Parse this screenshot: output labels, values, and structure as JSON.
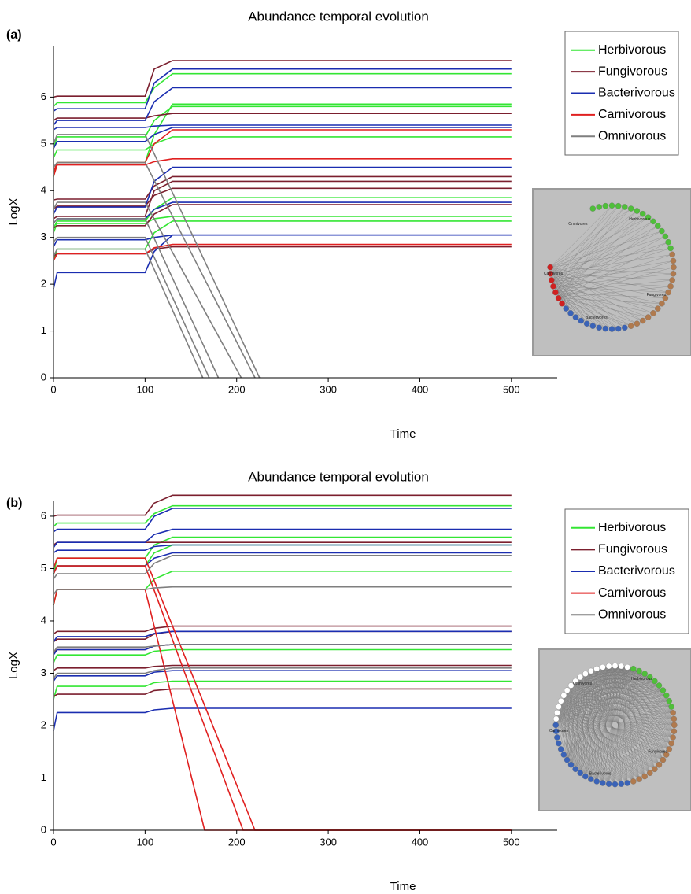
{
  "chart_data": [
    {
      "type": "line",
      "panel": "(a)",
      "title": "Abundance  temporal evolution",
      "x_label": "Time",
      "y_label": "LogX",
      "xlim": [
        0,
        550
      ],
      "ylim": [
        0,
        7.1
      ],
      "xticks": [
        0,
        100,
        200,
        300,
        400,
        500
      ],
      "yticks": [
        0,
        1,
        2,
        3,
        4,
        5,
        6
      ],
      "x": [
        0,
        4,
        100,
        110,
        130,
        500
      ],
      "series": [
        {
          "name": "Herbivorous",
          "color": "#33e633",
          "lines": [
            {
              "values": [
                5.8,
                5.88,
                5.88,
                6.2,
                6.5,
                6.5
              ]
            },
            {
              "values": [
                4.9,
                5.15,
                5.15,
                5.5,
                5.8,
                5.8
              ]
            },
            {
              "values": [
                4.7,
                4.87,
                4.87,
                5.0,
                5.15,
                5.15
              ]
            },
            {
              "values": [
                4.3,
                4.6,
                4.6,
                5.2,
                5.85,
                5.85
              ]
            },
            {
              "values": [
                3.2,
                3.35,
                3.35,
                3.6,
                3.85,
                3.85
              ]
            },
            {
              "values": [
                3.1,
                3.3,
                3.3,
                3.4,
                3.45,
                3.45
              ]
            },
            {
              "values": [
                2.5,
                2.75,
                2.75,
                3.1,
                3.35,
                3.35
              ]
            }
          ]
        },
        {
          "name": "Fungivorous",
          "color": "#7b1f2e",
          "lines": [
            {
              "values": [
                6.0,
                6.02,
                6.02,
                6.6,
                6.78,
                6.78
              ]
            },
            {
              "values": [
                5.5,
                5.55,
                5.55,
                5.6,
                5.65,
                5.65
              ]
            },
            {
              "values": [
                3.8,
                3.82,
                3.82,
                4.1,
                4.3,
                4.3
              ]
            },
            {
              "values": [
                3.6,
                3.67,
                3.67,
                3.9,
                4.05,
                4.05
              ]
            },
            {
              "values": [
                3.4,
                3.45,
                3.45,
                4.0,
                4.2,
                4.2
              ]
            },
            {
              "values": [
                3.2,
                3.25,
                3.25,
                3.5,
                3.7,
                3.7
              ]
            },
            {
              "values": [
                2.6,
                2.65,
                2.65,
                2.75,
                2.8,
                2.8
              ]
            }
          ]
        },
        {
          "name": "Bacterivorous",
          "color": "#1a2db0",
          "lines": [
            {
              "values": [
                5.7,
                5.75,
                5.75,
                6.3,
                6.6,
                6.6
              ]
            },
            {
              "values": [
                5.4,
                5.5,
                5.5,
                5.9,
                6.2,
                6.2
              ]
            },
            {
              "values": [
                5.3,
                5.35,
                5.35,
                5.38,
                5.4,
                5.4
              ]
            },
            {
              "values": [
                4.9,
                5.05,
                5.05,
                5.2,
                5.35,
                5.35
              ]
            },
            {
              "values": [
                3.5,
                3.65,
                3.65,
                4.2,
                4.5,
                4.5
              ]
            },
            {
              "values": [
                3.3,
                3.4,
                3.4,
                3.6,
                3.75,
                3.75
              ]
            },
            {
              "values": [
                2.8,
                2.95,
                2.95,
                3.0,
                3.05,
                3.05
              ]
            },
            {
              "values": [
                1.9,
                2.25,
                2.25,
                2.7,
                3.05,
                3.05
              ]
            }
          ]
        },
        {
          "name": "Carnivorous",
          "color": "#e02020",
          "lines": [
            {
              "values": [
                4.3,
                4.55,
                4.55,
                4.62,
                4.68,
                4.68
              ]
            },
            {
              "values": [
                2.5,
                2.65,
                2.65,
                2.78,
                2.85,
                2.85
              ]
            },
            {
              "values": [
                4.4,
                4.6,
                4.6,
                5.0,
                5.3,
                5.3
              ]
            }
          ]
        },
        {
          "name": "Omnivorous",
          "color": "#7f7f7f",
          "lines": [
            {
              "x": [
                0,
                4,
                100,
                225
              ],
              "values": [
                5.0,
                5.2,
                5.2,
                0
              ]
            },
            {
              "x": [
                0,
                4,
                100,
                220
              ],
              "values": [
                4.5,
                4.6,
                4.6,
                0
              ]
            },
            {
              "x": [
                0,
                4,
                100,
                205
              ],
              "values": [
                3.6,
                3.75,
                3.75,
                0
              ]
            },
            {
              "x": [
                0,
                4,
                100,
                180
              ],
              "values": [
                3.3,
                3.4,
                3.4,
                0
              ]
            },
            {
              "x": [
                0,
                4,
                100,
                170
              ],
              "values": [
                2.9,
                3.0,
                3.0,
                0
              ]
            },
            {
              "x": [
                0,
                4,
                100,
                163
              ],
              "values": [
                2.6,
                2.75,
                2.75,
                0
              ]
            }
          ]
        }
      ],
      "inset_labels": [
        "Omnivores",
        "Herbivorous",
        "Carnivores",
        "Fungivores",
        "Bacterivores"
      ]
    },
    {
      "type": "line",
      "panel": "(b)",
      "title": "Abundance  temporal evolution",
      "x_label": "Time",
      "y_label": "LogX",
      "xlim": [
        0,
        550
      ],
      "ylim": [
        0,
        6.3
      ],
      "xticks": [
        0,
        100,
        200,
        300,
        400,
        500
      ],
      "yticks": [
        0,
        1,
        2,
        3,
        4,
        5,
        6
      ],
      "x": [
        0,
        4,
        100,
        110,
        130,
        500
      ],
      "series": [
        {
          "name": "Herbivorous",
          "color": "#33e633",
          "lines": [
            {
              "values": [
                5.8,
                5.87,
                5.87,
                6.05,
                6.2,
                6.2
              ]
            },
            {
              "values": [
                4.9,
                5.2,
                5.2,
                5.45,
                5.6,
                5.6
              ]
            },
            {
              "values": [
                4.9,
                5.05,
                5.05,
                5.3,
                5.45,
                5.45
              ]
            },
            {
              "values": [
                4.3,
                4.6,
                4.6,
                4.8,
                4.95,
                4.95
              ]
            },
            {
              "values": [
                3.2,
                3.35,
                3.35,
                3.42,
                3.45,
                3.45
              ]
            },
            {
              "values": [
                2.5,
                2.75,
                2.75,
                2.82,
                2.85,
                2.85
              ]
            }
          ]
        },
        {
          "name": "Fungivorous",
          "color": "#7b1f2e",
          "lines": [
            {
              "values": [
                6.0,
                6.02,
                6.02,
                6.25,
                6.4,
                6.4
              ]
            },
            {
              "values": [
                5.45,
                5.5,
                5.5,
                5.5,
                5.5,
                5.5
              ]
            },
            {
              "values": [
                3.75,
                3.8,
                3.8,
                3.86,
                3.9,
                3.9
              ]
            },
            {
              "values": [
                3.6,
                3.65,
                3.65,
                3.75,
                3.8,
                3.8
              ]
            },
            {
              "values": [
                3.4,
                3.45,
                3.45,
                3.52,
                3.55,
                3.55
              ]
            },
            {
              "values": [
                3.05,
                3.1,
                3.1,
                3.13,
                3.15,
                3.15
              ]
            },
            {
              "values": [
                2.55,
                2.6,
                2.6,
                2.67,
                2.7,
                2.7
              ]
            }
          ]
        },
        {
          "name": "Bacterivorous",
          "color": "#1a2db0",
          "lines": [
            {
              "values": [
                5.7,
                5.75,
                5.75,
                6.0,
                6.15,
                6.15
              ]
            },
            {
              "values": [
                5.4,
                5.5,
                5.5,
                5.65,
                5.75,
                5.75
              ]
            },
            {
              "values": [
                5.3,
                5.35,
                5.35,
                5.42,
                5.45,
                5.45
              ]
            },
            {
              "values": [
                4.9,
                5.05,
                5.05,
                5.2,
                5.3,
                5.3
              ]
            },
            {
              "values": [
                3.6,
                3.7,
                3.7,
                3.76,
                3.8,
                3.8
              ]
            },
            {
              "values": [
                3.35,
                3.45,
                3.45,
                3.52,
                3.55,
                3.55
              ]
            },
            {
              "values": [
                2.85,
                2.95,
                2.95,
                3.02,
                3.05,
                3.05
              ]
            },
            {
              "values": [
                1.9,
                2.25,
                2.25,
                2.3,
                2.33,
                2.33
              ]
            }
          ]
        },
        {
          "name": "Carnivorous",
          "color": "#e02020",
          "lines": [
            {
              "x": [
                0,
                4,
                100,
                220,
                500
              ],
              "values": [
                5.0,
                5.2,
                5.2,
                0,
                0
              ]
            },
            {
              "x": [
                0,
                4,
                100,
                207,
                500
              ],
              "values": [
                4.9,
                5.05,
                5.05,
                0,
                0
              ]
            },
            {
              "x": [
                0,
                4,
                100,
                165,
                500
              ],
              "values": [
                4.3,
                4.6,
                4.6,
                0,
                0
              ]
            }
          ]
        },
        {
          "name": "Omnivorous",
          "color": "#7f7f7f",
          "lines": [
            {
              "values": [
                4.5,
                4.6,
                4.6,
                4.63,
                4.65,
                4.65
              ]
            },
            {
              "values": [
                4.8,
                4.9,
                4.9,
                5.1,
                5.25,
                5.25
              ]
            },
            {
              "values": [
                3.4,
                3.5,
                3.5,
                3.52,
                3.55,
                3.55
              ]
            },
            {
              "values": [
                2.9,
                3.0,
                3.0,
                3.05,
                3.1,
                3.1
              ]
            }
          ]
        }
      ],
      "inset_labels": [
        "Omnivores",
        "Herbivorous",
        "Carnivores",
        "Fungivores",
        "Bacterivores"
      ]
    }
  ]
}
